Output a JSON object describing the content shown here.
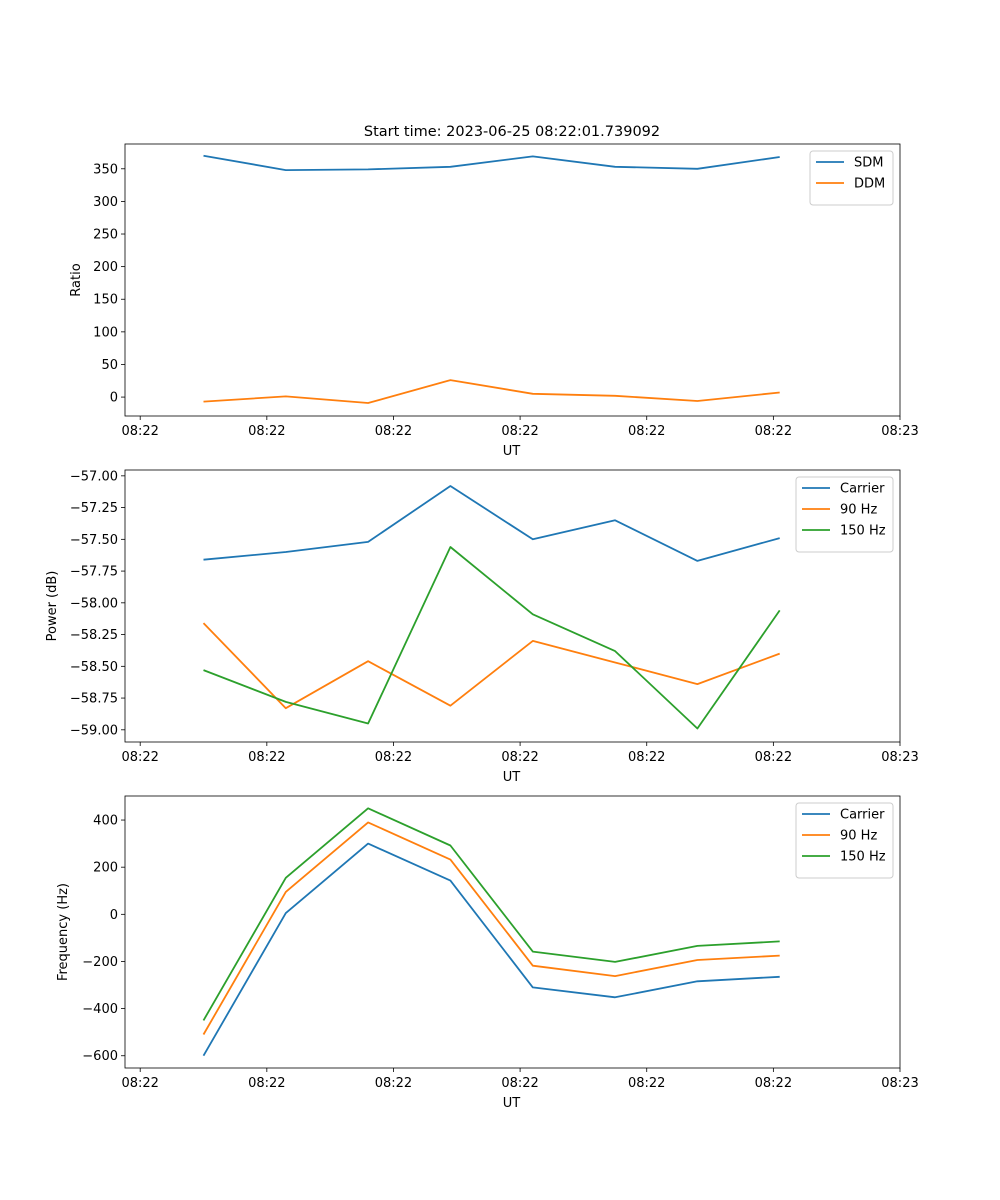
{
  "title": "Start time: 2023-06-25 08:22:01.739092",
  "colors": {
    "c0": "#1f77b4",
    "c1": "#ff7f0e",
    "c2": "#2ca02c"
  },
  "chart_data": [
    {
      "type": "line",
      "xlabel": "UT",
      "ylabel": "Ratio",
      "x_ticks": [
        "08:22",
        "08:22",
        "08:22",
        "08:22",
        "08:22",
        "08:22",
        "08:23"
      ],
      "x_range": [
        -0.12,
        6.0
      ],
      "ylim": [
        -29,
        388
      ],
      "y_ticks": [
        0,
        50,
        100,
        150,
        200,
        250,
        300,
        350
      ],
      "y_tick_labels": [
        "0",
        "50",
        "100",
        "150",
        "200",
        "250",
        "300",
        "350"
      ],
      "legend_position": "top-right",
      "x": [
        0.5,
        1.15,
        1.8,
        2.45,
        3.1,
        3.75,
        4.4,
        5.05
      ],
      "series": [
        {
          "name": "SDM",
          "color": "#1f77b4",
          "values": [
            370,
            348,
            349,
            353,
            369,
            353,
            350,
            368
          ]
        },
        {
          "name": "DDM",
          "color": "#ff7f0e",
          "values": [
            -7,
            1,
            -9,
            26,
            5,
            2,
            -6,
            7
          ]
        }
      ]
    },
    {
      "type": "line",
      "xlabel": "UT",
      "ylabel": "Power (dB)",
      "x_ticks": [
        "08:22",
        "08:22",
        "08:22",
        "08:22",
        "08:22",
        "08:22",
        "08:23"
      ],
      "x_range": [
        -0.12,
        6.0
      ],
      "ylim": [
        -59.096,
        -56.954
      ],
      "y_ticks": [
        -59.0,
        -58.75,
        -58.5,
        -58.25,
        -58.0,
        -57.75,
        -57.5,
        -57.25,
        -57.0
      ],
      "y_tick_labels": [
        "−59.00",
        "−58.75",
        "−58.50",
        "−58.25",
        "−58.00",
        "−57.75",
        "−57.50",
        "−57.25",
        "−57.00"
      ],
      "legend_position": "top-right",
      "x": [
        0.5,
        1.15,
        1.8,
        2.45,
        3.1,
        3.75,
        4.4,
        5.05
      ],
      "series": [
        {
          "name": "Carrier",
          "color": "#1f77b4",
          "values": [
            -57.66,
            -57.6,
            -57.52,
            -57.08,
            -57.5,
            -57.35,
            -57.67,
            -57.49
          ]
        },
        {
          "name": "90 Hz",
          "color": "#ff7f0e",
          "values": [
            -58.16,
            -58.83,
            -58.46,
            -58.81,
            -58.3,
            -58.47,
            -58.64,
            -58.4
          ]
        },
        {
          "name": "150 Hz",
          "color": "#2ca02c",
          "values": [
            -58.53,
            -58.78,
            -58.95,
            -57.56,
            -58.09,
            -58.38,
            -58.99,
            -58.06
          ]
        }
      ]
    },
    {
      "type": "line",
      "xlabel": "UT",
      "ylabel": "Frequency (Hz)",
      "x_ticks": [
        "08:22",
        "08:22",
        "08:22",
        "08:22",
        "08:22",
        "08:22",
        "08:23"
      ],
      "x_range": [
        -0.12,
        6.0
      ],
      "ylim": [
        -652,
        502
      ],
      "y_ticks": [
        -600,
        -400,
        -200,
        0,
        200,
        400
      ],
      "y_tick_labels": [
        "−600",
        "−400",
        "−200",
        "0",
        "200",
        "400"
      ],
      "legend_position": "top-right",
      "x": [
        0.5,
        1.15,
        1.8,
        2.45,
        3.1,
        3.75,
        4.4,
        5.05
      ],
      "series": [
        {
          "name": "Carrier",
          "color": "#1f77b4",
          "values": [
            -600,
            5,
            300,
            143,
            -310,
            -352,
            -284,
            -265
          ]
        },
        {
          "name": "90 Hz",
          "color": "#ff7f0e",
          "values": [
            -510,
            95,
            390,
            232,
            -218,
            -262,
            -194,
            -175
          ]
        },
        {
          "name": "150 Hz",
          "color": "#2ca02c",
          "values": [
            -450,
            155,
            450,
            292,
            -158,
            -202,
            -134,
            -115
          ]
        }
      ]
    }
  ]
}
